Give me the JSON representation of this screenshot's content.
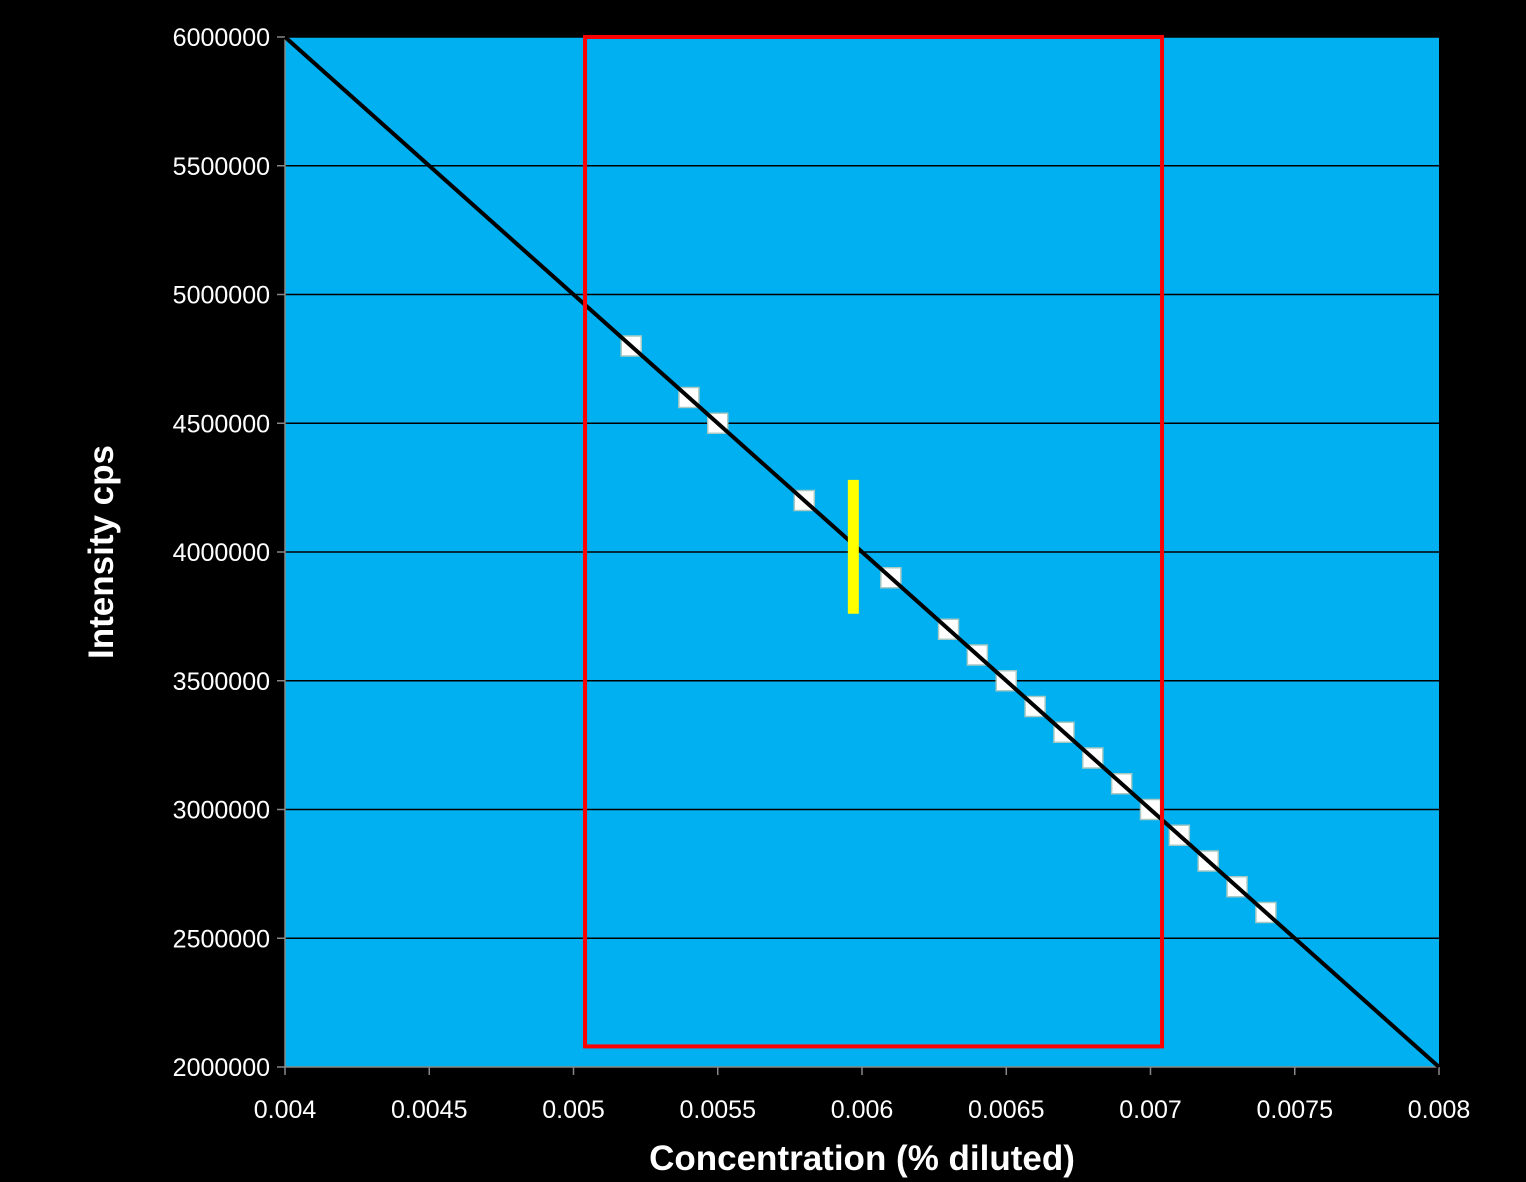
{
  "colors": {
    "background": "#000000",
    "plot_area": "#00b0f0",
    "gridline": "#000000",
    "fit_line": "#000000",
    "marker_fill": "#ffffff",
    "marker_edge": "#a9c9c4",
    "highlight_box": "#ff0000",
    "yellow_marker": "#ffff00",
    "text": "#ffffff"
  },
  "chart_data": {
    "type": "scatter",
    "title": "",
    "xlabel": "Concentration (% diluted)",
    "ylabel": "Intensity cps",
    "xlim": [
      0.004,
      0.008
    ],
    "ylim": [
      2000000,
      6000000
    ],
    "x_ticks": [
      0.004,
      0.0045,
      0.005,
      0.0055,
      0.006,
      0.0065,
      0.007,
      0.0075,
      0.008
    ],
    "x_tick_labels": [
      "0.004",
      "0.0045",
      "0.005",
      "0.0055",
      "0.006",
      "0.0065",
      "0.007",
      "0.0075",
      "0.008"
    ],
    "y_ticks": [
      2000000,
      2500000,
      3000000,
      3500000,
      4000000,
      4500000,
      5000000,
      5500000,
      6000000
    ],
    "y_tick_labels": [
      "2000000",
      "2500000",
      "3000000",
      "3500000",
      "4000000",
      "4500000",
      "5000000",
      "5500000",
      "6000000"
    ],
    "grid": "horizontal",
    "legend": "none",
    "series": [
      {
        "type": "scatter",
        "marker": "square",
        "points": [
          {
            "x": 0.0052,
            "y": 4800000
          },
          {
            "x": 0.0054,
            "y": 4600000
          },
          {
            "x": 0.0055,
            "y": 4500000
          },
          {
            "x": 0.0058,
            "y": 4200000
          },
          {
            "x": 0.0061,
            "y": 3900000
          },
          {
            "x": 0.0063,
            "y": 3700000
          },
          {
            "x": 0.0064,
            "y": 3600000
          },
          {
            "x": 0.0065,
            "y": 3500000
          },
          {
            "x": 0.0066,
            "y": 3400000
          },
          {
            "x": 0.0067,
            "y": 3300000
          },
          {
            "x": 0.0068,
            "y": 3200000
          },
          {
            "x": 0.0069,
            "y": 3100000
          },
          {
            "x": 0.007,
            "y": 3000000
          },
          {
            "x": 0.0071,
            "y": 2900000
          },
          {
            "x": 0.0072,
            "y": 2800000
          },
          {
            "x": 0.0073,
            "y": 2700000
          },
          {
            "x": 0.0074,
            "y": 2600000
          }
        ]
      },
      {
        "type": "line",
        "points": [
          {
            "x": 0.004,
            "y": 6000000
          },
          {
            "x": 0.008,
            "y": 2000000
          }
        ]
      }
    ],
    "annotations": [
      {
        "type": "rectangle",
        "color": "red",
        "x_range": [
          0.00504,
          0.00704
        ],
        "y_range": [
          2080000,
          6000000
        ]
      },
      {
        "type": "vertical-bar",
        "color": "yellow",
        "x": 0.00597,
        "y_range": [
          3760000,
          4280000
        ]
      }
    ]
  }
}
